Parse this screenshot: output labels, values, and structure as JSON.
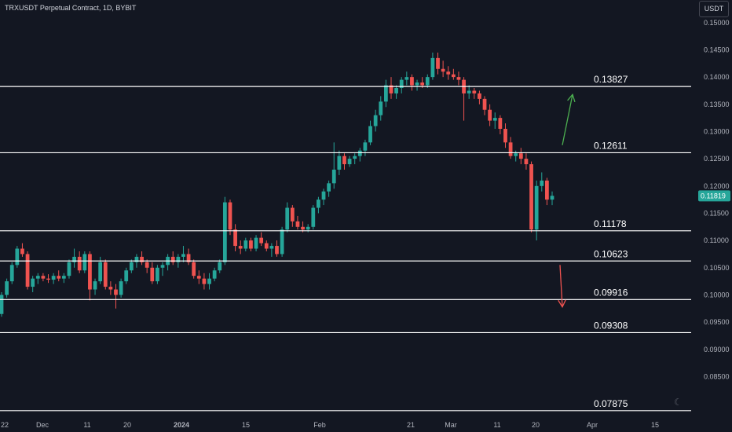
{
  "header": {
    "title": "TRXUSDT Perpetual Contract, 1D, BYBIT"
  },
  "toolbar": {
    "currency": "USDT"
  },
  "chart_data": {
    "type": "candlestick",
    "title": "TRXUSDT Perpetual Contract, 1D, BYBIT",
    "yaxis": {
      "min": 0.078,
      "max": 0.153,
      "ticks": [
        "0.15000",
        "0.14500",
        "0.14000",
        "0.13500",
        "0.13000",
        "0.12500",
        "0.12000",
        "0.11500",
        "0.11000",
        "0.10500",
        "0.10000",
        "0.09500",
        "0.09000",
        "0.08500"
      ],
      "side": "right"
    },
    "xaxis": {
      "ticks": [
        "22",
        "Dec",
        "11",
        "20",
        "2024",
        "15",
        "Feb",
        "21",
        "Mar",
        "11",
        "20",
        "Apr",
        "15"
      ]
    },
    "current_price": "0.11819",
    "levels": [
      {
        "label": "0.13827",
        "value": 0.13827
      },
      {
        "label": "0.12611",
        "value": 0.12611
      },
      {
        "label": "0.11178",
        "value": 0.11178
      },
      {
        "label": "0.10623",
        "value": 0.10623
      },
      {
        "label": "0.09916",
        "value": 0.09916
      },
      {
        "label": "0.09308",
        "value": 0.09308
      },
      {
        "label": "0.07875",
        "value": 0.07875
      }
    ],
    "arrows": [
      {
        "direction": "up",
        "color": "#4caf50",
        "from": 0.1275,
        "to": 0.1368
      },
      {
        "direction": "down",
        "color": "#f05350",
        "from": 0.1055,
        "to": 0.0978
      }
    ],
    "colors": {
      "up": "#26a69a",
      "down": "#ef5350",
      "background": "#131722",
      "level": "#ffffff",
      "price_label": "#26a69a"
    },
    "candles": [
      [
        0.0965,
        0.1005,
        0.096,
        0.1
      ],
      [
        0.1,
        0.103,
        0.0995,
        0.1025
      ],
      [
        0.1025,
        0.106,
        0.102,
        0.1055
      ],
      [
        0.1055,
        0.109,
        0.105,
        0.1085
      ],
      [
        0.1085,
        0.1095,
        0.107,
        0.1075
      ],
      [
        0.1075,
        0.108,
        0.101,
        0.1015
      ],
      [
        0.1015,
        0.1035,
        0.1005,
        0.103
      ],
      [
        0.103,
        0.104,
        0.102,
        0.1035
      ],
      [
        0.1035,
        0.104,
        0.1025,
        0.103
      ],
      [
        0.103,
        0.1038,
        0.1022,
        0.1028
      ],
      [
        0.1028,
        0.104,
        0.102,
        0.1035
      ],
      [
        0.1035,
        0.1045,
        0.1025,
        0.103
      ],
      [
        0.103,
        0.104,
        0.1022,
        0.1035
      ],
      [
        0.1035,
        0.1065,
        0.103,
        0.106
      ],
      [
        0.106,
        0.1085,
        0.105,
        0.107
      ],
      [
        0.107,
        0.108,
        0.104,
        0.1045
      ],
      [
        0.1045,
        0.108,
        0.104,
        0.1075
      ],
      [
        0.1075,
        0.108,
        0.099,
        0.101
      ],
      [
        0.101,
        0.103,
        0.1,
        0.1025
      ],
      [
        0.1025,
        0.107,
        0.102,
        0.106
      ],
      [
        0.106,
        0.1065,
        0.101,
        0.1015
      ],
      [
        0.1015,
        0.1025,
        0.1,
        0.101
      ],
      [
        0.101,
        0.102,
        0.0975,
        0.1
      ],
      [
        0.1,
        0.103,
        0.0995,
        0.1025
      ],
      [
        0.1025,
        0.105,
        0.102,
        0.1045
      ],
      [
        0.1045,
        0.1065,
        0.104,
        0.106
      ],
      [
        0.106,
        0.1075,
        0.105,
        0.107
      ],
      [
        0.107,
        0.108,
        0.1055,
        0.106
      ],
      [
        0.106,
        0.1065,
        0.104,
        0.105
      ],
      [
        0.105,
        0.106,
        0.102,
        0.1025
      ],
      [
        0.1025,
        0.1055,
        0.102,
        0.105
      ],
      [
        0.105,
        0.106,
        0.1035,
        0.1055
      ],
      [
        0.1055,
        0.1075,
        0.1045,
        0.107
      ],
      [
        0.107,
        0.108,
        0.1055,
        0.106
      ],
      [
        0.106,
        0.1075,
        0.105,
        0.107
      ],
      [
        0.107,
        0.109,
        0.106,
        0.1075
      ],
      [
        0.1075,
        0.1085,
        0.1055,
        0.106
      ],
      [
        0.106,
        0.1065,
        0.103,
        0.1035
      ],
      [
        0.1035,
        0.1045,
        0.102,
        0.103
      ],
      [
        0.103,
        0.104,
        0.101,
        0.102
      ],
      [
        0.102,
        0.104,
        0.101,
        0.103
      ],
      [
        0.103,
        0.105,
        0.1025,
        0.1045
      ],
      [
        0.1045,
        0.1065,
        0.104,
        0.106
      ],
      [
        0.106,
        0.118,
        0.1055,
        0.117
      ],
      [
        0.117,
        0.1175,
        0.111,
        0.112
      ],
      [
        0.112,
        0.113,
        0.108,
        0.109
      ],
      [
        0.109,
        0.11,
        0.1075,
        0.1085
      ],
      [
        0.1085,
        0.1105,
        0.108,
        0.11
      ],
      [
        0.11,
        0.1105,
        0.108,
        0.1085
      ],
      [
        0.1085,
        0.111,
        0.108,
        0.1105
      ],
      [
        0.1105,
        0.1115,
        0.109,
        0.1095
      ],
      [
        0.1095,
        0.11,
        0.108,
        0.1085
      ],
      [
        0.1085,
        0.1095,
        0.107,
        0.109
      ],
      [
        0.109,
        0.11,
        0.107,
        0.1075
      ],
      [
        0.1075,
        0.1125,
        0.107,
        0.112
      ],
      [
        0.112,
        0.117,
        0.1115,
        0.116
      ],
      [
        0.116,
        0.1165,
        0.1125,
        0.1135
      ],
      [
        0.1135,
        0.1145,
        0.112,
        0.1125
      ],
      [
        0.1125,
        0.1135,
        0.1115,
        0.112
      ],
      [
        0.112,
        0.113,
        0.1115,
        0.1125
      ],
      [
        0.1125,
        0.1165,
        0.112,
        0.116
      ],
      [
        0.116,
        0.118,
        0.115,
        0.1175
      ],
      [
        0.1175,
        0.1195,
        0.1165,
        0.119
      ],
      [
        0.119,
        0.121,
        0.118,
        0.1205
      ],
      [
        0.1205,
        0.128,
        0.1195,
        0.123
      ],
      [
        0.123,
        0.1265,
        0.122,
        0.1255
      ],
      [
        0.1255,
        0.126,
        0.123,
        0.124
      ],
      [
        0.124,
        0.1255,
        0.1235,
        0.125
      ],
      [
        0.125,
        0.126,
        0.124,
        0.1255
      ],
      [
        0.1255,
        0.127,
        0.1245,
        0.1265
      ],
      [
        0.1265,
        0.1285,
        0.1255,
        0.128
      ],
      [
        0.128,
        0.132,
        0.1275,
        0.131
      ],
      [
        0.131,
        0.134,
        0.13,
        0.133
      ],
      [
        0.133,
        0.1365,
        0.132,
        0.1355
      ],
      [
        0.1355,
        0.1395,
        0.1345,
        0.1385
      ],
      [
        0.1385,
        0.14,
        0.136,
        0.137
      ],
      [
        0.137,
        0.1385,
        0.136,
        0.138
      ],
      [
        0.138,
        0.14,
        0.137,
        0.1395
      ],
      [
        0.1395,
        0.141,
        0.1385,
        0.14
      ],
      [
        0.14,
        0.1405,
        0.1375,
        0.1385
      ],
      [
        0.1385,
        0.1395,
        0.1375,
        0.139
      ],
      [
        0.139,
        0.14,
        0.138,
        0.1385
      ],
      [
        0.1385,
        0.1405,
        0.138,
        0.14
      ],
      [
        0.14,
        0.1445,
        0.1395,
        0.1435
      ],
      [
        0.1435,
        0.1445,
        0.1405,
        0.1415
      ],
      [
        0.1415,
        0.143,
        0.14,
        0.141
      ],
      [
        0.141,
        0.142,
        0.1395,
        0.1405
      ],
      [
        0.1405,
        0.1415,
        0.1395,
        0.14
      ],
      [
        0.14,
        0.141,
        0.1385,
        0.1395
      ],
      [
        0.1395,
        0.14,
        0.132,
        0.137
      ],
      [
        0.137,
        0.1385,
        0.136,
        0.1375
      ],
      [
        0.1375,
        0.138,
        0.136,
        0.137
      ],
      [
        0.137,
        0.1375,
        0.135,
        0.136
      ],
      [
        0.136,
        0.1365,
        0.133,
        0.134
      ],
      [
        0.134,
        0.135,
        0.131,
        0.132
      ],
      [
        0.132,
        0.1335,
        0.1305,
        0.1325
      ],
      [
        0.1325,
        0.133,
        0.1295,
        0.1305
      ],
      [
        0.1305,
        0.1315,
        0.127,
        0.128
      ],
      [
        0.128,
        0.129,
        0.125,
        0.1255
      ],
      [
        0.1255,
        0.1265,
        0.1245,
        0.126
      ],
      [
        0.126,
        0.127,
        0.124,
        0.125
      ],
      [
        0.125,
        0.126,
        0.123,
        0.124
      ],
      [
        0.124,
        0.1245,
        0.1115,
        0.112
      ],
      [
        0.112,
        0.121,
        0.11,
        0.12
      ],
      [
        0.12,
        0.1225,
        0.119,
        0.121
      ],
      [
        0.121,
        0.1215,
        0.1165,
        0.1175
      ],
      [
        0.1175,
        0.119,
        0.1165,
        0.1182
      ]
    ]
  }
}
